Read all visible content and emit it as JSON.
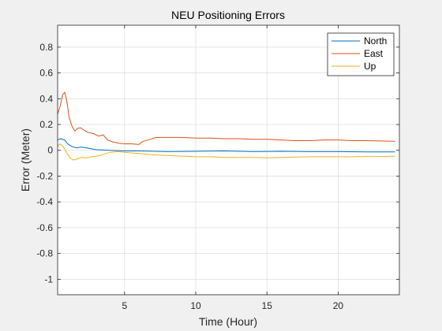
{
  "chart_data": {
    "type": "line",
    "title": "NEU Positioning Errors",
    "xlabel": "Time (Hour)",
    "ylabel": "Error (Meter)",
    "xlim": [
      0.3,
      24.3
    ],
    "ylim": [
      -1.12,
      0.97
    ],
    "xticks": [
      5,
      10,
      15,
      20
    ],
    "yticks": [
      0.8,
      0.6,
      0.4,
      0.2,
      0,
      -0.2,
      -0.4,
      -0.6,
      -0.8,
      -1
    ],
    "xtick_labels": [
      "5",
      "10",
      "15",
      "20"
    ],
    "ytick_labels": [
      "0.8",
      "0.6",
      "0.4",
      "0.2",
      "0",
      "-0.2",
      "-0.4",
      "-0.6",
      "-0.8",
      "-1"
    ],
    "grid": true,
    "legend_position": "top-right",
    "series": [
      {
        "name": "North",
        "color": "#0072BD",
        "x": [
          0.3,
          0.5,
          0.8,
          1.0,
          1.3,
          1.6,
          2.0,
          2.5,
          3.0,
          4.0,
          5.0,
          6.0,
          8.0,
          10.0,
          12.0,
          14.0,
          16.0,
          18.0,
          20.0,
          22.0,
          24.0
        ],
        "y": [
          0.08,
          0.09,
          0.08,
          0.05,
          0.03,
          0.02,
          0.025,
          0.015,
          0.005,
          0.0,
          -0.005,
          -0.005,
          -0.01,
          -0.008,
          -0.005,
          -0.01,
          -0.008,
          -0.01,
          -0.01,
          -0.012,
          -0.012
        ]
      },
      {
        "name": "East",
        "color": "#D95319",
        "x": [
          0.3,
          0.5,
          0.65,
          0.8,
          0.95,
          1.1,
          1.3,
          1.5,
          1.7,
          1.9,
          2.1,
          2.4,
          2.8,
          3.2,
          3.5,
          3.8,
          4.2,
          4.6,
          5.0,
          5.5,
          6.0,
          6.3,
          6.8,
          7.2,
          8.0,
          9.0,
          10.0,
          11.0,
          12.0,
          13.0,
          14.0,
          15.0,
          16.0,
          17.0,
          18.0,
          19.0,
          20.0,
          21.0,
          22.0,
          23.0,
          24.0
        ],
        "y": [
          0.28,
          0.35,
          0.43,
          0.45,
          0.38,
          0.26,
          0.19,
          0.15,
          0.17,
          0.175,
          0.16,
          0.14,
          0.13,
          0.11,
          0.12,
          0.08,
          0.065,
          0.055,
          0.05,
          0.05,
          0.045,
          0.07,
          0.085,
          0.1,
          0.1,
          0.1,
          0.095,
          0.095,
          0.09,
          0.09,
          0.085,
          0.085,
          0.08,
          0.075,
          0.075,
          0.08,
          0.08,
          0.075,
          0.075,
          0.072,
          0.07
        ]
      },
      {
        "name": "Up",
        "color": "#EDB120",
        "x": [
          0.3,
          0.45,
          0.6,
          0.8,
          1.0,
          1.2,
          1.4,
          1.6,
          1.8,
          2.0,
          2.3,
          2.7,
          3.0,
          3.3,
          3.7,
          4.0,
          4.5,
          5.0,
          5.5,
          6.0,
          7.0,
          8.0,
          9.0,
          10.0,
          11.0,
          12.0,
          13.0,
          14.0,
          15.0,
          16.0,
          17.0,
          18.0,
          19.0,
          20.0,
          21.0,
          22.0,
          23.0,
          24.0
        ],
        "y": [
          0.03,
          0.05,
          0.04,
          0.01,
          -0.03,
          -0.06,
          -0.075,
          -0.07,
          -0.06,
          -0.055,
          -0.06,
          -0.05,
          -0.045,
          -0.04,
          -0.025,
          -0.015,
          -0.01,
          -0.015,
          -0.02,
          -0.025,
          -0.035,
          -0.04,
          -0.045,
          -0.05,
          -0.05,
          -0.055,
          -0.055,
          -0.055,
          -0.058,
          -0.055,
          -0.052,
          -0.05,
          -0.05,
          -0.05,
          -0.05,
          -0.048,
          -0.048,
          -0.045
        ]
      }
    ]
  }
}
